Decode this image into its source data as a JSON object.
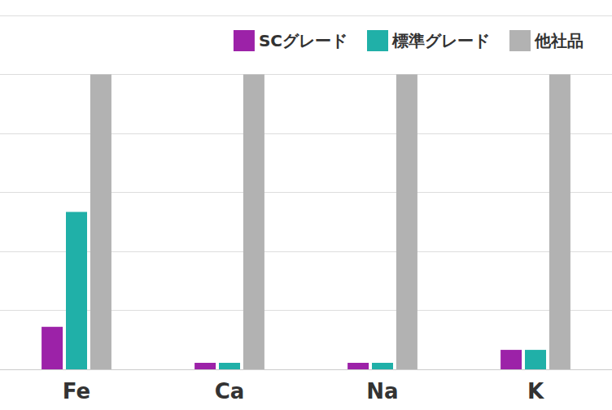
{
  "chart_data": {
    "type": "bar",
    "categories": [
      "Fe",
      "Ca",
      "Na",
      "K"
    ],
    "series": [
      {
        "name": "SCグレード",
        "color": "#9c22a8",
        "values": [
          0.72,
          0.11,
          0.11,
          0.33
        ]
      },
      {
        "name": "標準グレード",
        "color": "#20b0a8",
        "values": [
          2.67,
          0.11,
          0.11,
          0.33
        ]
      },
      {
        "name": "他社品",
        "color": "#b2b2b2",
        "values": [
          5,
          5,
          5,
          5
        ]
      }
    ],
    "ylim": [
      0,
      6
    ],
    "yticks": [
      0,
      1,
      2,
      3,
      4,
      5,
      6
    ],
    "grid": true,
    "legend": "top-right",
    "tick_labels": "x"
  }
}
